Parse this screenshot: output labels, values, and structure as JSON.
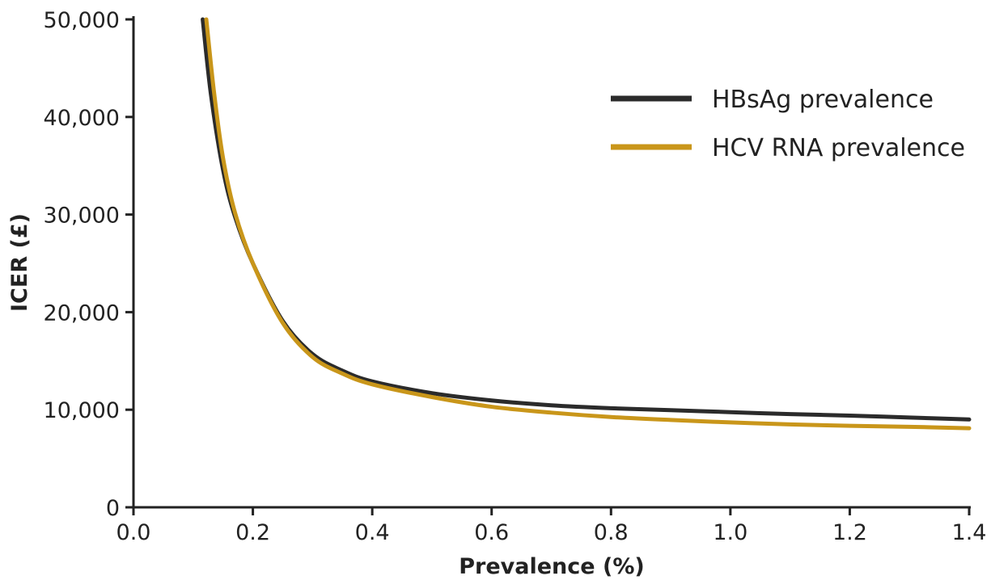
{
  "chart_data": {
    "type": "line",
    "title": "",
    "xlabel": "Prevalence (%)",
    "ylabel": "ICER (£)",
    "xlim": [
      0.0,
      1.4
    ],
    "ylim": [
      0,
      50000
    ],
    "x_ticks": [
      0.0,
      0.2,
      0.4,
      0.6,
      0.8,
      1.0,
      1.2,
      1.4
    ],
    "x_tick_labels": [
      "0.0",
      "0.2",
      "0.4",
      "0.6",
      "0.8",
      "1.0",
      "1.2",
      "1.4"
    ],
    "y_ticks": [
      0,
      10000,
      20000,
      30000,
      40000,
      50000
    ],
    "y_tick_labels": [
      "0",
      "10,000",
      "20,000",
      "30,000",
      "40,000",
      "50,000"
    ],
    "grid": false,
    "legend_position": "top-right",
    "series": [
      {
        "name": "HBsAg prevalence",
        "color": "#2b2b2b",
        "x": [
          0.116,
          0.13,
          0.15,
          0.17,
          0.2,
          0.25,
          0.3,
          0.35,
          0.4,
          0.5,
          0.6,
          0.7,
          0.8,
          0.9,
          1.0,
          1.1,
          1.2,
          1.3,
          1.4
        ],
        "y": [
          50000,
          42200,
          34600,
          29800,
          25000,
          19100,
          15700,
          14000,
          12900,
          11700,
          10950,
          10450,
          10150,
          9950,
          9750,
          9550,
          9400,
          9200,
          9000
        ]
      },
      {
        "name": "HCV RNA prevalence",
        "color": "#c9961a",
        "x": [
          0.122,
          0.135,
          0.15,
          0.17,
          0.2,
          0.25,
          0.3,
          0.35,
          0.4,
          0.5,
          0.6,
          0.7,
          0.8,
          0.9,
          1.0,
          1.1,
          1.2,
          1.3,
          1.4
        ],
        "y": [
          50000,
          42500,
          35800,
          30200,
          25000,
          18900,
          15400,
          13700,
          12600,
          11300,
          10300,
          9700,
          9250,
          8950,
          8700,
          8500,
          8350,
          8250,
          8100
        ]
      }
    ]
  }
}
